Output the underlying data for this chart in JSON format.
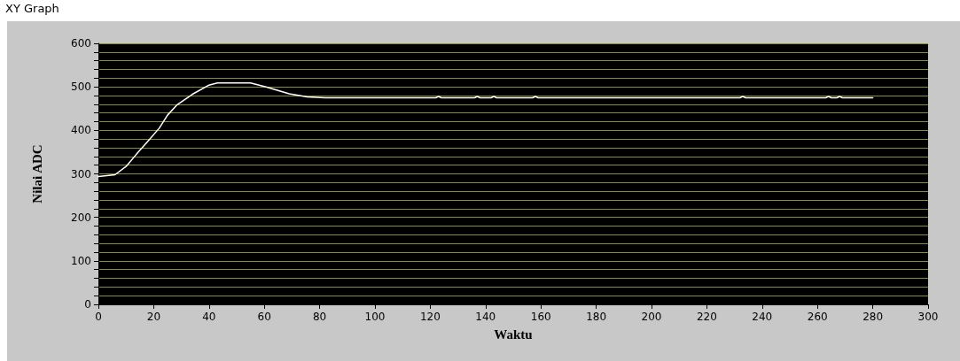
{
  "chart_data": {
    "type": "line",
    "title": "XY Graph",
    "xlabel": "Waktu",
    "ylabel": "Nilai ADC",
    "x": [
      0,
      6,
      10,
      13.6,
      17.8,
      22,
      25,
      28.5,
      34,
      40,
      43,
      55,
      60.6,
      69,
      75.5,
      82,
      122,
      123,
      124,
      136,
      137,
      138,
      142,
      143,
      144,
      157,
      158,
      159,
      232,
      233,
      234,
      263,
      264,
      265,
      267,
      268,
      269,
      280
    ],
    "series": [
      {
        "color": "#ffffff",
        "values": [
          294,
          298,
          317,
          344,
          374,
          405,
          435,
          459,
          483,
          504,
          509,
          509,
          500,
          484,
          477,
          475,
          475,
          478,
          475,
          475,
          478,
          475,
          475,
          478,
          475,
          475,
          478,
          475,
          475,
          478,
          475,
          475,
          478,
          475,
          475,
          478,
          475,
          475
        ]
      }
    ],
    "xlim": [
      0,
      300
    ],
    "xticks": [
      0,
      20,
      40,
      60,
      80,
      100,
      120,
      140,
      160,
      180,
      200,
      220,
      240,
      260,
      280,
      300
    ],
    "ylim": [
      0,
      600
    ],
    "yticks": [
      0,
      {
        "value": 20,
        "label": null
      },
      {
        "value": 40,
        "label": null
      },
      {
        "value": 60,
        "label": null
      },
      {
        "value": 80,
        "label": null
      },
      100,
      {
        "value": 120,
        "label": null
      },
      {
        "value": 140,
        "label": null
      },
      {
        "value": 160,
        "label": null
      },
      {
        "value": 180,
        "label": null
      },
      200,
      {
        "value": 220,
        "label": null
      },
      {
        "value": 240,
        "label": null
      },
      {
        "value": 260,
        "label": null
      },
      {
        "value": 280,
        "label": null
      },
      300,
      {
        "value": 320,
        "label": null
      },
      {
        "value": 340,
        "label": null
      },
      {
        "value": 360,
        "label": null
      },
      {
        "value": 380,
        "label": null
      },
      400,
      {
        "value": 420,
        "label": null
      },
      {
        "value": 440,
        "label": null
      },
      {
        "value": 460,
        "label": null
      },
      {
        "value": 480,
        "label": null
      },
      500,
      {
        "value": 520,
        "label": null
      },
      {
        "value": 540,
        "label": null
      },
      {
        "value": 560,
        "label": null
      },
      {
        "value": 580,
        "label": null
      },
      600
    ],
    "grid": "y",
    "marker": "none",
    "line_style": "solid"
  }
}
